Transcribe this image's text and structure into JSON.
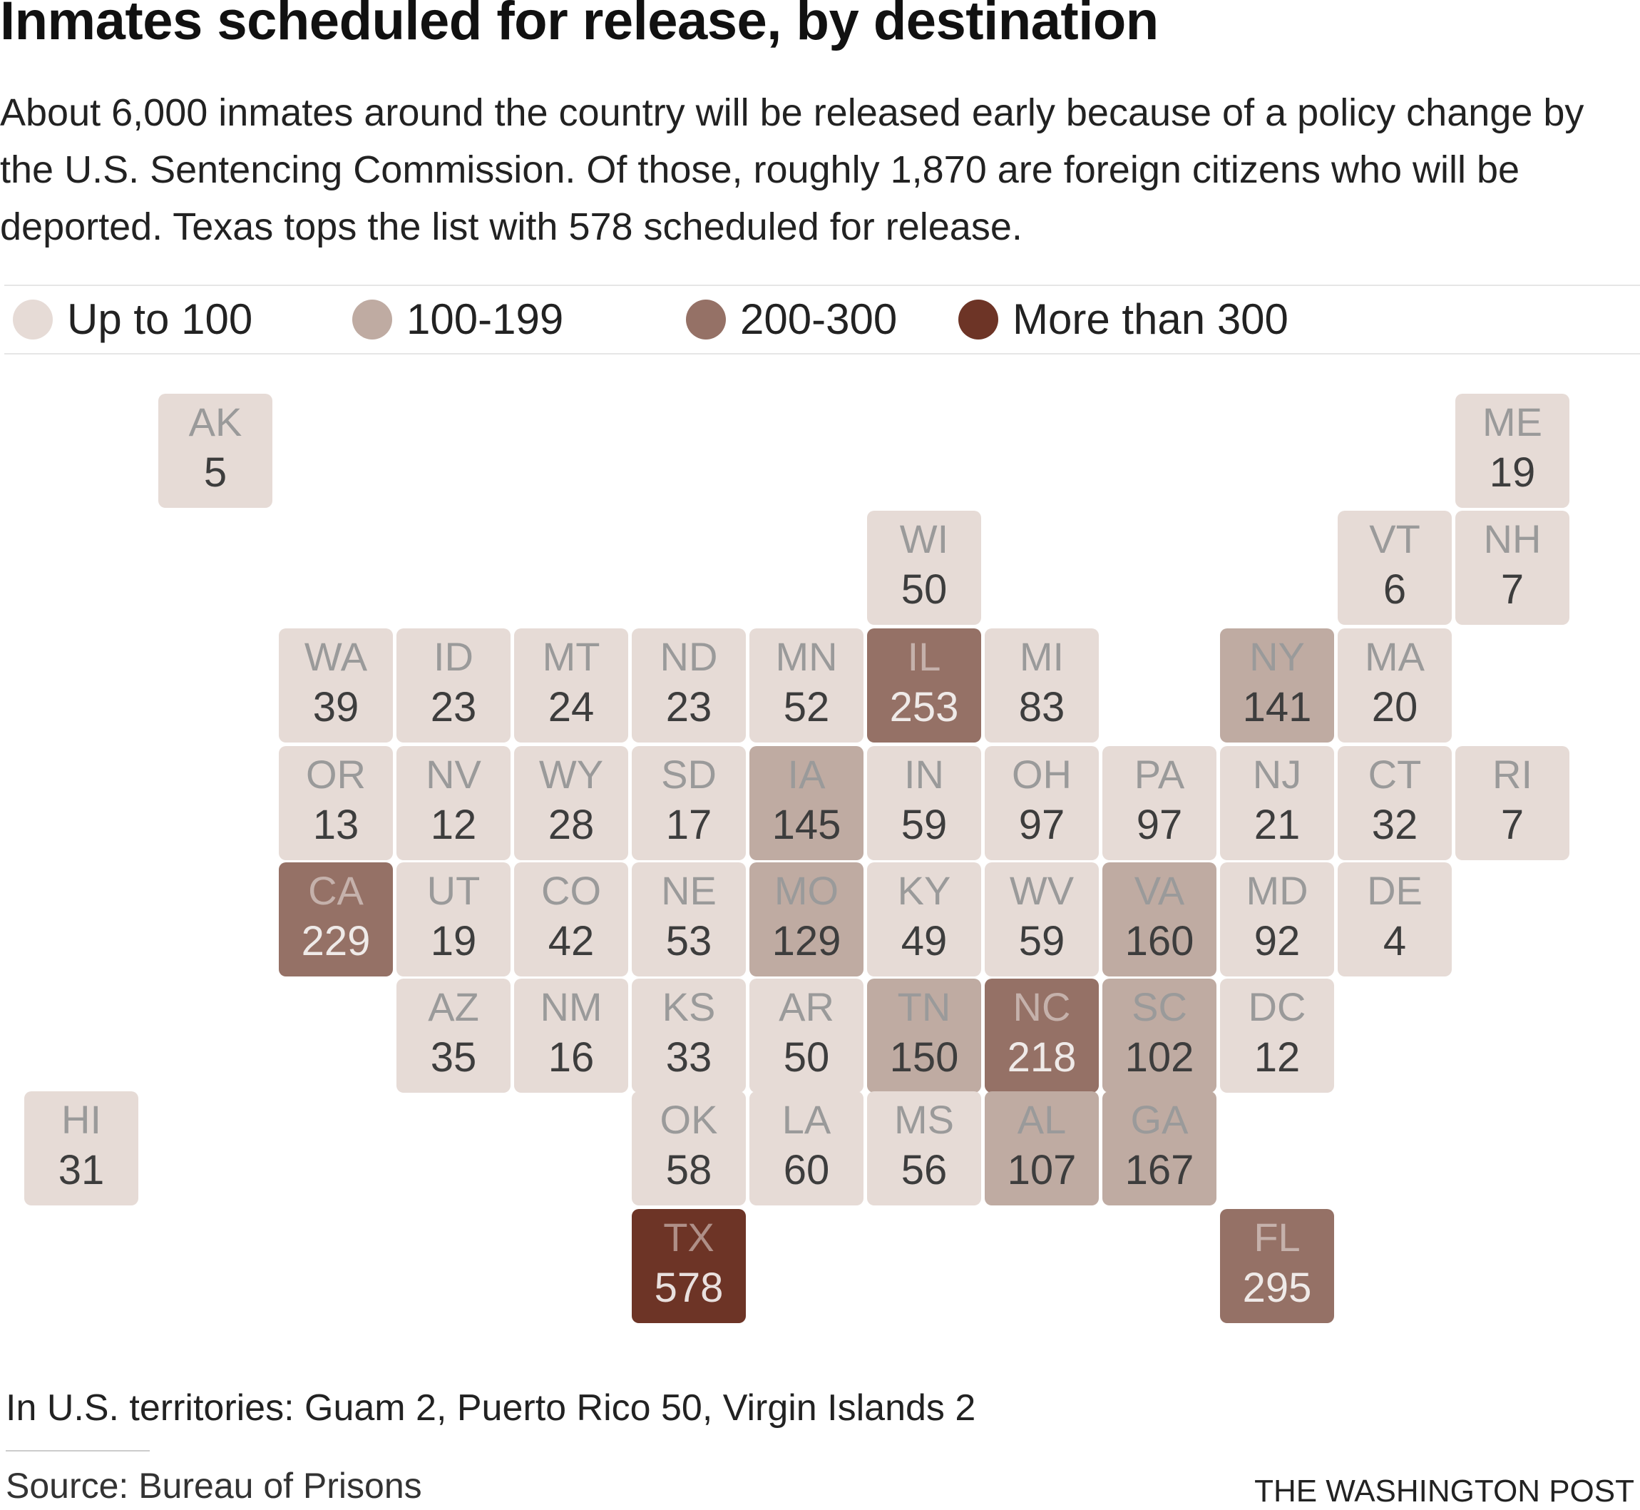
{
  "title": "Inmates scheduled for release, by destination",
  "subtitle": "About 6,000 inmates around the country will be released early because of a policy change by the U.S. Sentencing Commission. Of those, roughly 1,870 are foreign citizens who will be deported. Texas tops the list with 578 scheduled for release.",
  "legend": [
    {
      "label": "Up to 100",
      "color": "#e6dbd6"
    },
    {
      "label": "100-199",
      "color": "#bfaba2"
    },
    {
      "label": "200-300",
      "color": "#957166"
    },
    {
      "label": "More than 300",
      "color": "#6d3426"
    }
  ],
  "colors": {
    "bin_1": "#e6dbd6",
    "bin_2": "#bfaba2",
    "bin_3": "#957166",
    "bin_4": "#6d3426",
    "text_dark": "#3d3d3d",
    "abbr_light": "#9a9a9a"
  },
  "chart_data": {
    "type": "tile-map",
    "bins": [
      "Up to 100",
      "100-199",
      "200-300",
      "More than 300"
    ],
    "states": [
      {
        "abbr": "AK",
        "value": 5
      },
      {
        "abbr": "ME",
        "value": 19
      },
      {
        "abbr": "WI",
        "value": 50
      },
      {
        "abbr": "VT",
        "value": 6
      },
      {
        "abbr": "NH",
        "value": 7
      },
      {
        "abbr": "WA",
        "value": 39
      },
      {
        "abbr": "ID",
        "value": 23
      },
      {
        "abbr": "MT",
        "value": 24
      },
      {
        "abbr": "ND",
        "value": 23
      },
      {
        "abbr": "MN",
        "value": 52
      },
      {
        "abbr": "IL",
        "value": 253
      },
      {
        "abbr": "MI",
        "value": 83
      },
      {
        "abbr": "NY",
        "value": 141
      },
      {
        "abbr": "MA",
        "value": 20
      },
      {
        "abbr": "OR",
        "value": 13
      },
      {
        "abbr": "NV",
        "value": 12
      },
      {
        "abbr": "WY",
        "value": 28
      },
      {
        "abbr": "SD",
        "value": 17
      },
      {
        "abbr": "IA",
        "value": 145
      },
      {
        "abbr": "IN",
        "value": 59
      },
      {
        "abbr": "OH",
        "value": 97
      },
      {
        "abbr": "PA",
        "value": 97
      },
      {
        "abbr": "NJ",
        "value": 21
      },
      {
        "abbr": "CT",
        "value": 32
      },
      {
        "abbr": "RI",
        "value": 7
      },
      {
        "abbr": "CA",
        "value": 229
      },
      {
        "abbr": "UT",
        "value": 19
      },
      {
        "abbr": "CO",
        "value": 42
      },
      {
        "abbr": "NE",
        "value": 53
      },
      {
        "abbr": "MO",
        "value": 129
      },
      {
        "abbr": "KY",
        "value": 49
      },
      {
        "abbr": "WV",
        "value": 59
      },
      {
        "abbr": "VA",
        "value": 160
      },
      {
        "abbr": "MD",
        "value": 92
      },
      {
        "abbr": "DE",
        "value": 4
      },
      {
        "abbr": "AZ",
        "value": 35
      },
      {
        "abbr": "NM",
        "value": 16
      },
      {
        "abbr": "KS",
        "value": 33
      },
      {
        "abbr": "AR",
        "value": 50
      },
      {
        "abbr": "TN",
        "value": 150
      },
      {
        "abbr": "NC",
        "value": 218
      },
      {
        "abbr": "SC",
        "value": 102
      },
      {
        "abbr": "DC",
        "value": 12
      },
      {
        "abbr": "HI",
        "value": 31
      },
      {
        "abbr": "OK",
        "value": 58
      },
      {
        "abbr": "LA",
        "value": 60
      },
      {
        "abbr": "MS",
        "value": 56
      },
      {
        "abbr": "AL",
        "value": 107
      },
      {
        "abbr": "GA",
        "value": 167
      },
      {
        "abbr": "TX",
        "value": 578
      },
      {
        "abbr": "FL",
        "value": 295
      }
    ]
  },
  "footnote": "In U.S. territories: Guam 2, Puerto Rico 50, Virgin Islands 2",
  "source": "Source: Bureau of Prisons",
  "credit": "THE WASHINGTON POST"
}
